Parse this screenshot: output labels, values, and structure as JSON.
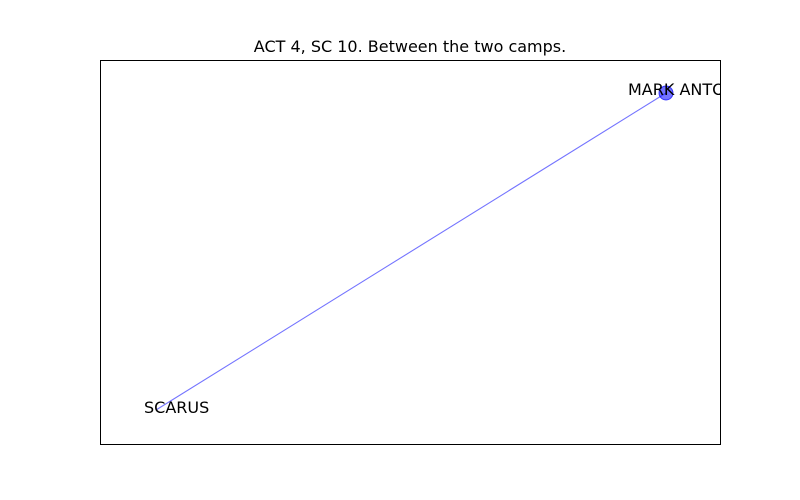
{
  "figure": {
    "title": "ACT 4, SC 10. Between the two camps."
  },
  "graph": {
    "nodes": [
      {
        "id": "mark_antony",
        "label": "MARK ANTONY",
        "color": "#0000ff",
        "marker": "circle"
      },
      {
        "id": "scarus",
        "label": "SCARUS",
        "color": "#0000ff",
        "marker": "none"
      }
    ],
    "edges": [
      {
        "source": "mark_antony",
        "target": "scarus",
        "color": "#0000ff"
      }
    ]
  }
}
